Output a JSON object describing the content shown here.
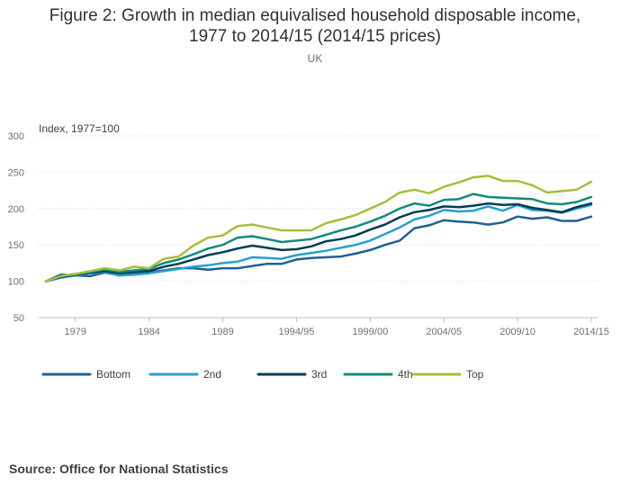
{
  "chart_data": {
    "type": "line",
    "title_line1": "Figure 2: Growth in median equivalised household disposable income,",
    "title_line2": "1977 to 2014/15 (2014/15 prices)",
    "subtitle": "UK",
    "ylabel": "Index, 1977=100",
    "ylim": [
      50,
      300
    ],
    "yticks": [
      50,
      100,
      150,
      200,
      250,
      300
    ],
    "grid": true,
    "legend_position": "bottom-left",
    "x_tick_labels": [
      "1979",
      "1984",
      "1989",
      "1994/95",
      "1999/00",
      "2004/05",
      "2009/10",
      "2014/15"
    ],
    "x_tick_positions": [
      2,
      7,
      12,
      17,
      22,
      27,
      32,
      37
    ],
    "x_count": 38,
    "series": [
      {
        "name": "Bottom",
        "color": "#206095",
        "values": [
          100,
          109,
          108,
          107,
          112,
          108,
          110,
          112,
          115,
          118,
          118,
          116,
          118,
          118,
          121,
          124,
          124,
          130,
          132,
          133,
          134,
          138,
          143,
          150,
          156,
          173,
          177,
          184,
          182,
          181,
          178,
          181,
          189,
          186,
          188,
          183,
          183,
          189
        ]
      },
      {
        "name": "2nd",
        "color": "#27a0cc",
        "values": [
          100,
          105,
          108,
          111,
          113,
          108,
          109,
          111,
          114,
          117,
          120,
          122,
          125,
          127,
          133,
          132,
          131,
          136,
          139,
          142,
          146,
          150,
          156,
          165,
          174,
          185,
          190,
          198,
          196,
          197,
          203,
          197,
          205,
          198,
          197,
          194,
          200,
          205
        ]
      },
      {
        "name": "3rd",
        "color": "#003c57",
        "values": [
          100,
          106,
          109,
          112,
          114,
          111,
          113,
          114,
          120,
          124,
          130,
          136,
          140,
          145,
          149,
          146,
          143,
          144,
          148,
          155,
          158,
          163,
          171,
          178,
          188,
          195,
          198,
          203,
          202,
          204,
          207,
          205,
          206,
          201,
          198,
          195,
          202,
          207
        ]
      },
      {
        "name": "4th",
        "color": "#118c7b",
        "values": [
          100,
          107,
          110,
          113,
          116,
          113,
          115,
          117,
          125,
          130,
          137,
          145,
          150,
          160,
          162,
          158,
          154,
          156,
          158,
          164,
          170,
          175,
          182,
          190,
          200,
          207,
          204,
          212,
          213,
          220,
          216,
          215,
          214,
          213,
          207,
          206,
          209,
          216
        ]
      },
      {
        "name": "Top",
        "color": "#a8bd3a",
        "values": [
          100,
          107,
          110,
          114,
          118,
          115,
          120,
          118,
          131,
          134,
          149,
          160,
          163,
          176,
          178,
          174,
          170,
          170,
          170,
          180,
          185,
          191,
          200,
          209,
          222,
          226,
          221,
          230,
          236,
          243,
          245,
          238,
          238,
          232,
          222,
          224,
          226,
          237
        ]
      }
    ]
  },
  "source_text": "Source: Office for National Statistics"
}
